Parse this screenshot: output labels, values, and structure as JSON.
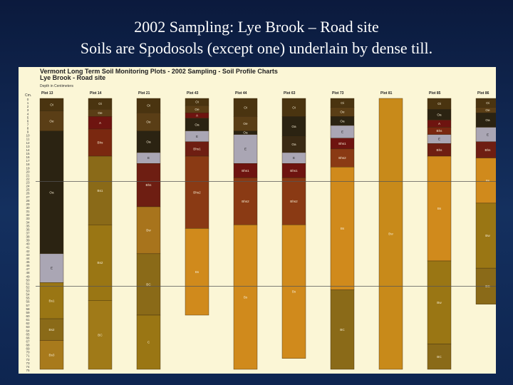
{
  "slide": {
    "title_line1": "2002 Sampling: Lye Brook – Road site",
    "title_line2": "Soils are Spodosols (except one) underlain by dense till."
  },
  "colors": {
    "slide_background": "#12295a",
    "panel_background": "#fbf6d6",
    "Oi": "#4a3410",
    "Oe": "#5a3e16",
    "Oa": "#2b2312",
    "A": "#6e1410",
    "E": "#aaa6b4",
    "Bhs": "#6e1e12",
    "Bs": "#8a3a14",
    "Bw": "#a8741c",
    "BC": "#9a7614",
    "C": "#8a6a18",
    "Cd": "#a06e1a",
    "Bh": "#7a2810"
  },
  "chart_data": {
    "type": "stacked-bar",
    "title": "Vermont Long Term Soil Monitoring Plots - 2002 Sampling - Soil Profile Charts",
    "subtitle": "Lye Brook - Road site",
    "axis_note": "Depth in Centimeters",
    "y_axis_label": "Cm.",
    "ylim": [
      0,
      75
    ],
    "y_ticks": [
      0,
      1,
      2,
      3,
      4,
      5,
      6,
      7,
      8,
      9,
      10,
      11,
      12,
      13,
      14,
      15,
      16,
      17,
      18,
      19,
      20,
      21,
      22,
      23,
      24,
      25,
      26,
      27,
      28,
      29,
      30,
      31,
      32,
      33,
      34,
      35,
      36,
      37,
      38,
      39,
      40,
      41,
      42,
      43,
      44,
      45,
      46,
      47,
      48,
      49,
      50,
      51,
      52,
      53,
      54,
      55,
      56,
      57,
      58,
      59,
      60,
      61,
      62,
      63,
      64,
      65,
      66,
      67,
      68,
      69,
      70,
      71,
      72,
      73,
      74,
      75
    ],
    "grid": false,
    "reference_lines": [
      23,
      52
    ],
    "plots": [
      {
        "name": "Plot 13",
        "layers": [
          {
            "h": "Oi",
            "top": 0,
            "bottom": 3.5,
            "color": "#4a3410"
          },
          {
            "h": "Oe",
            "top": 3.5,
            "bottom": 9,
            "color": "#5a3e16"
          },
          {
            "h": "Oa",
            "top": 9,
            "bottom": 43,
            "color": "#2b2312"
          },
          {
            "h": "E",
            "top": 43,
            "bottom": 51,
            "color": "#aaa6b4"
          },
          {
            "h": "Bs1",
            "top": 51,
            "bottom": 61,
            "color": "#9a7614"
          },
          {
            "h": "Bs2",
            "top": 61,
            "bottom": 67,
            "color": "#8a6a18"
          },
          {
            "h": "Bs3",
            "top": 67,
            "bottom": 75,
            "color": "#a87a1c"
          }
        ]
      },
      {
        "name": "Plot 14",
        "layers": [
          {
            "h": "Oi",
            "top": 0,
            "bottom": 3,
            "color": "#4a3410"
          },
          {
            "h": "Oe",
            "top": 3,
            "bottom": 5,
            "color": "#5a3e16"
          },
          {
            "h": "A",
            "top": 5,
            "bottom": 8.5,
            "color": "#6e1410"
          },
          {
            "h": "Bhs",
            "top": 8.5,
            "bottom": 16,
            "color": "#7a2810"
          },
          {
            "h": "Bs1",
            "top": 16,
            "bottom": 35,
            "color": "#8a6a18"
          },
          {
            "h": "Bs2",
            "top": 35,
            "bottom": 56,
            "color": "#9a7614"
          },
          {
            "h": "BC",
            "top": 56,
            "bottom": 75,
            "color": "#a07a18"
          }
        ]
      },
      {
        "name": "Plot 21",
        "layers": [
          {
            "h": "Oi",
            "top": 0,
            "bottom": 4,
            "color": "#4a3410"
          },
          {
            "h": "Oe",
            "top": 4,
            "bottom": 9,
            "color": "#5a3e16"
          },
          {
            "h": "Oa",
            "top": 9,
            "bottom": 15,
            "color": "#2b2312"
          },
          {
            "h": "E",
            "top": 15,
            "bottom": 18,
            "color": "#aaa6b4"
          },
          {
            "h": "Bhs",
            "top": 18,
            "bottom": 30,
            "color": "#6e1e12"
          },
          {
            "h": "Bw",
            "top": 30,
            "bottom": 43,
            "color": "#a8741c"
          },
          {
            "h": "BC",
            "top": 43,
            "bottom": 60,
            "color": "#8a6a18"
          },
          {
            "h": "C",
            "top": 60,
            "bottom": 75,
            "color": "#9a7614"
          }
        ]
      },
      {
        "name": "Plot 43",
        "layers": [
          {
            "h": "Oi",
            "top": 0,
            "bottom": 2,
            "color": "#4a3410"
          },
          {
            "h": "Oe",
            "top": 2,
            "bottom": 4,
            "color": "#5a3e16"
          },
          {
            "h": "A",
            "top": 4,
            "bottom": 5.5,
            "color": "#6e1410"
          },
          {
            "h": "Oa",
            "top": 5.5,
            "bottom": 9,
            "color": "#2b2312"
          },
          {
            "h": "E",
            "top": 9,
            "bottom": 12,
            "color": "#aaa6b4"
          },
          {
            "h": "Bhs1",
            "top": 12,
            "bottom": 16,
            "color": "#6e1e12"
          },
          {
            "h": "Bhs2",
            "top": 16,
            "bottom": 36,
            "color": "#8a3a14"
          },
          {
            "h": "Bs",
            "top": 36,
            "bottom": 60,
            "color": "#d08a1c"
          }
        ]
      },
      {
        "name": "Plot 44",
        "layers": [
          {
            "h": "Oi",
            "top": 0,
            "bottom": 5,
            "color": "#4a3410"
          },
          {
            "h": "Oe",
            "top": 5,
            "bottom": 9,
            "color": "#5a3e16"
          },
          {
            "h": "Oa",
            "top": 9,
            "bottom": 10,
            "color": "#2b2312"
          },
          {
            "h": "E",
            "top": 10,
            "bottom": 18,
            "color": "#aaa6b4"
          },
          {
            "h": "Bhs1",
            "top": 18,
            "bottom": 22,
            "color": "#6e1410"
          },
          {
            "h": "Bhs2",
            "top": 22,
            "bottom": 35,
            "color": "#8a3a14"
          },
          {
            "h": "Bs",
            "top": 35,
            "bottom": 75,
            "color": "#d08a1c"
          }
        ]
      },
      {
        "name": "Plot 63",
        "layers": [
          {
            "h": "Oi",
            "top": 0,
            "bottom": 5,
            "color": "#4a3410"
          },
          {
            "h": "Oa",
            "top": 5,
            "bottom": 10.5,
            "color": "#2b2312"
          },
          {
            "h": "Oa",
            "top": 10.5,
            "bottom": 15,
            "color": "#3a2a14"
          },
          {
            "h": "E",
            "top": 15,
            "bottom": 18,
            "color": "#aaa6b4"
          },
          {
            "h": "Bhs1",
            "top": 18,
            "bottom": 22,
            "color": "#6e1410"
          },
          {
            "h": "Bhs2",
            "top": 22,
            "bottom": 35,
            "color": "#8a3a14"
          },
          {
            "h": "Bs",
            "top": 35,
            "bottom": 72,
            "color": "#d08a1c"
          }
        ]
      },
      {
        "name": "Plot 73",
        "layers": [
          {
            "h": "Oi",
            "top": 0,
            "bottom": 2.5,
            "color": "#4a3410"
          },
          {
            "h": "Oe",
            "top": 2.5,
            "bottom": 5,
            "color": "#5a3e16"
          },
          {
            "h": "Oa",
            "top": 5,
            "bottom": 7.5,
            "color": "#2b2312"
          },
          {
            "h": "E",
            "top": 7.5,
            "bottom": 11,
            "color": "#aaa6b4"
          },
          {
            "h": "Bhs1",
            "top": 11,
            "bottom": 14,
            "color": "#6e1410"
          },
          {
            "h": "Bhs2",
            "top": 14,
            "bottom": 19,
            "color": "#8a3a14"
          },
          {
            "h": "Bs",
            "top": 19,
            "bottom": 53,
            "color": "#d08a1c"
          },
          {
            "h": "BC",
            "top": 53,
            "bottom": 75,
            "color": "#8a6a18"
          }
        ]
      },
      {
        "name": "Plot 81",
        "layers": [
          {
            "h": "Bw",
            "top": 0,
            "bottom": 75,
            "color": "#c88a1a"
          }
        ]
      },
      {
        "name": "Plot 85",
        "layers": [
          {
            "h": "Oi",
            "top": 0,
            "bottom": 3,
            "color": "#4a3410"
          },
          {
            "h": "Oa",
            "top": 3,
            "bottom": 6,
            "color": "#2b2312"
          },
          {
            "h": "A",
            "top": 6,
            "bottom": 8,
            "color": "#6e1410"
          },
          {
            "h": "Bhs",
            "top": 8,
            "bottom": 10,
            "color": "#7a2810"
          },
          {
            "h": "E",
            "top": 10,
            "bottom": 12.5,
            "color": "#aaa6b4"
          },
          {
            "h": "Bhs",
            "top": 12.5,
            "bottom": 16,
            "color": "#6e1e12"
          },
          {
            "h": "Bs",
            "top": 16,
            "bottom": 45,
            "color": "#d08a1c"
          },
          {
            "h": "Bw",
            "top": 45,
            "bottom": 68,
            "color": "#9a7614"
          },
          {
            "h": "BC",
            "top": 68,
            "bottom": 75,
            "color": "#8a6a18"
          }
        ]
      },
      {
        "name": "Plot 86",
        "layers": [
          {
            "h": "Oi",
            "top": 0,
            "bottom": 2.5,
            "color": "#4a3410"
          },
          {
            "h": "Oe",
            "top": 2.5,
            "bottom": 4,
            "color": "#5a3e16"
          },
          {
            "h": "Oa",
            "top": 4,
            "bottom": 8,
            "color": "#2b2312"
          },
          {
            "h": "E",
            "top": 8,
            "bottom": 12,
            "color": "#aaa6b4"
          },
          {
            "h": "Bhs",
            "top": 12,
            "bottom": 16.5,
            "color": "#6e1e12"
          },
          {
            "h": "Bs",
            "top": 16.5,
            "bottom": 29,
            "color": "#d08a1c"
          },
          {
            "h": "Bw",
            "top": 29,
            "bottom": 47,
            "color": "#9a7614"
          },
          {
            "h": "BC",
            "top": 47,
            "bottom": 57,
            "color": "#8a6a18"
          }
        ]
      }
    ]
  }
}
